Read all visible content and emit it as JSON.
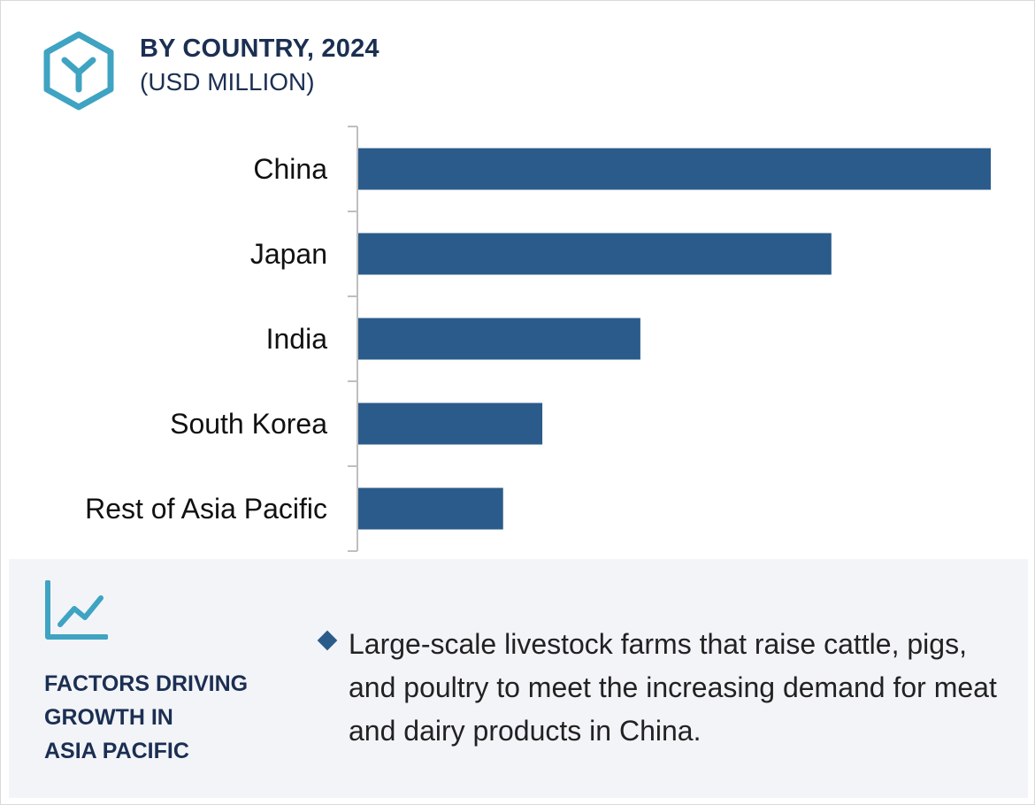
{
  "header": {
    "title": "BY COUNTRY, 2024",
    "subtitle": "(USD MILLION)"
  },
  "colors": {
    "bar": "#2b5b8a",
    "accent": "#3fa3c2",
    "heading": "#1b2f52",
    "panel_bg": "#f3f4f8"
  },
  "chart_data": {
    "type": "bar",
    "orientation": "horizontal",
    "categories": [
      "China",
      "Japan",
      "India",
      "South Korea",
      "Rest of Asia Pacific"
    ],
    "values": [
      100,
      74.8,
      44.6,
      29.1,
      22.9
    ],
    "xlim": [
      0,
      100
    ],
    "title": "BY COUNTRY, 2024",
    "subtitle": "(USD MILLION)",
    "grid": false,
    "legend": "none"
  },
  "factors": {
    "icon": "trend-line-icon",
    "title": "FACTORS DRIVING GROWTH IN ASIA PACIFIC",
    "title_lines": [
      "FACTORS DRIVING",
      "GROWTH IN",
      "ASIA PACIFIC"
    ],
    "bullet_icon": "diamond-bullet-icon",
    "items": [
      "Large-scale livestock farms that raise cattle, pigs, and poultry to meet the increasing demand for meat and dairy products in China."
    ]
  }
}
